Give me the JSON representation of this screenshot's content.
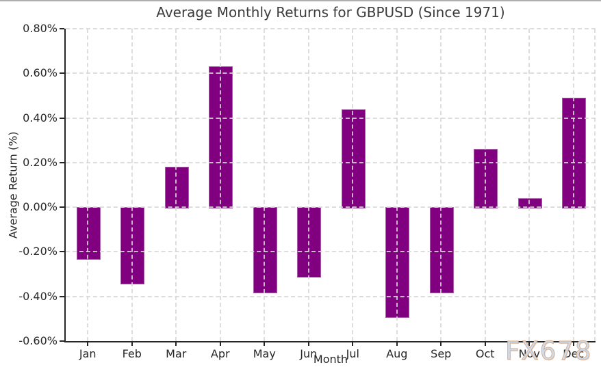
{
  "title": "Average Monthly Returns for GBPUSD (Since 1971)",
  "watermark": "FX678",
  "colors": {
    "bar_fill": "#800080",
    "bar_edge": "#a85ca8",
    "grid": "#d7d7d7",
    "axis": "#262626",
    "title_text": "#3b3b3b",
    "tick_text": "#262626",
    "watermark_fill": "#cedcf0",
    "watermark_edge": "#d6ab87"
  },
  "chart_data": {
    "type": "bar",
    "title": "Average Monthly Returns for GBPUSD (Since 1971)",
    "xlabel": "Month",
    "ylabel": "Average Return (%)",
    "categories": [
      "Jan",
      "Feb",
      "Mar",
      "Apr",
      "May",
      "Jun",
      "Jul",
      "Aug",
      "Sep",
      "Oct",
      "Nov",
      "Dec"
    ],
    "values": [
      -0.23,
      -0.34,
      0.18,
      0.63,
      -0.38,
      -0.31,
      0.44,
      -0.49,
      -0.38,
      0.26,
      0.04,
      0.49
    ],
    "unit": "%",
    "ylim": [
      -0.6,
      0.8
    ],
    "yticks": [
      {
        "value": 0.8,
        "label": "0.80%"
      },
      {
        "value": 0.6,
        "label": "0.60%"
      },
      {
        "value": 0.4,
        "label": "0.40%"
      },
      {
        "value": 0.2,
        "label": "0.20%"
      },
      {
        "value": 0.0,
        "label": "0.00%"
      },
      {
        "value": -0.2,
        "label": "-0.20%"
      },
      {
        "value": -0.4,
        "label": "-0.40%"
      },
      {
        "value": -0.6,
        "label": "-0.60%"
      }
    ],
    "grid": true,
    "grid_style": "dashed",
    "legend": "none",
    "bar_color": "#800080"
  }
}
